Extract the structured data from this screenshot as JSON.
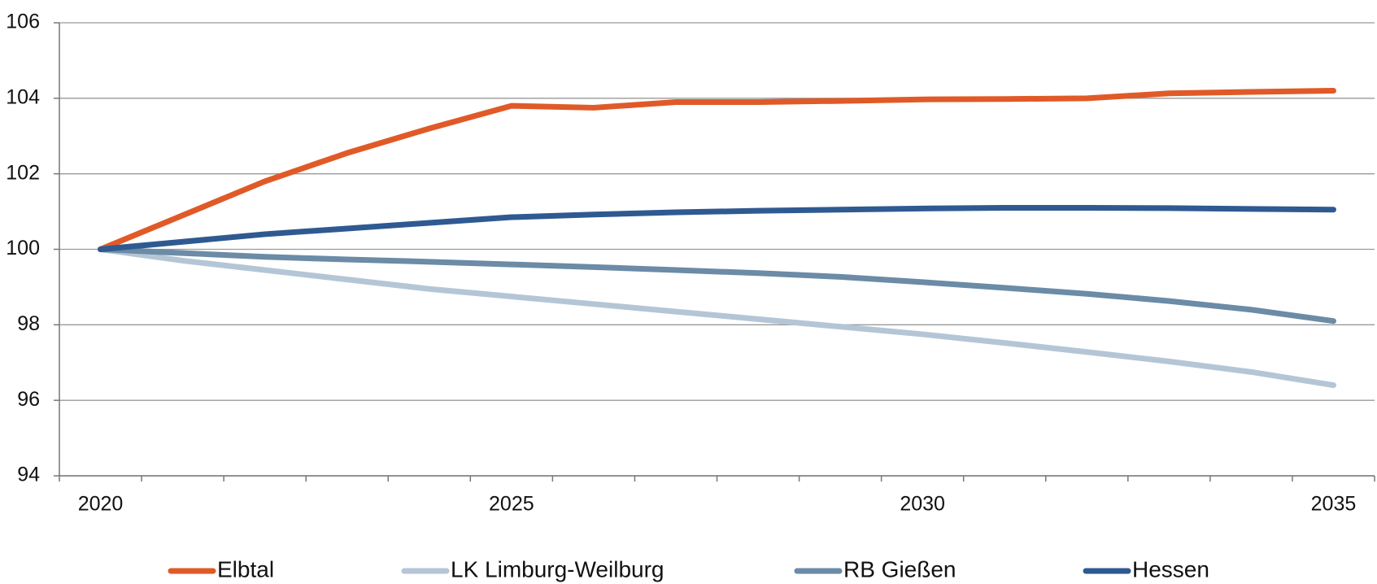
{
  "chart_data": {
    "type": "line",
    "categories": [
      "2020",
      null,
      null,
      null,
      null,
      "2025",
      null,
      null,
      null,
      null,
      "2030",
      null,
      null,
      null,
      null,
      "2035"
    ],
    "ylim": [
      94,
      106
    ],
    "yticks": [
      94,
      96,
      98,
      100,
      102,
      104,
      106
    ],
    "grid": true,
    "legend": "bottom",
    "series": [
      {
        "name": "Elbtal",
        "color": "#e05a28",
        "values": [
          100,
          100.9,
          101.8,
          102.55,
          103.2,
          103.8,
          103.75,
          103.9,
          103.9,
          103.93,
          103.97,
          103.98,
          104.0,
          104.13,
          104.17,
          104.2
        ]
      },
      {
        "name": "LK Limburg-Weilburg",
        "color": "#b4c6d6",
        "values": [
          100,
          99.7,
          99.45,
          99.2,
          98.95,
          98.75,
          98.55,
          98.35,
          98.15,
          97.95,
          97.75,
          97.52,
          97.28,
          97.03,
          96.75,
          96.4
        ]
      },
      {
        "name": "RB Gießen",
        "color": "#6b8ba6",
        "values": [
          100,
          99.9,
          99.8,
          99.73,
          99.67,
          99.6,
          99.53,
          99.45,
          99.37,
          99.27,
          99.13,
          98.98,
          98.82,
          98.63,
          98.4,
          98.1
        ]
      },
      {
        "name": "Hessen",
        "color": "#2f5a91",
        "values": [
          100,
          100.2,
          100.4,
          100.55,
          100.7,
          100.85,
          100.92,
          100.98,
          101.02,
          101.05,
          101.08,
          101.1,
          101.1,
          101.09,
          101.07,
          101.05
        ]
      }
    ]
  }
}
